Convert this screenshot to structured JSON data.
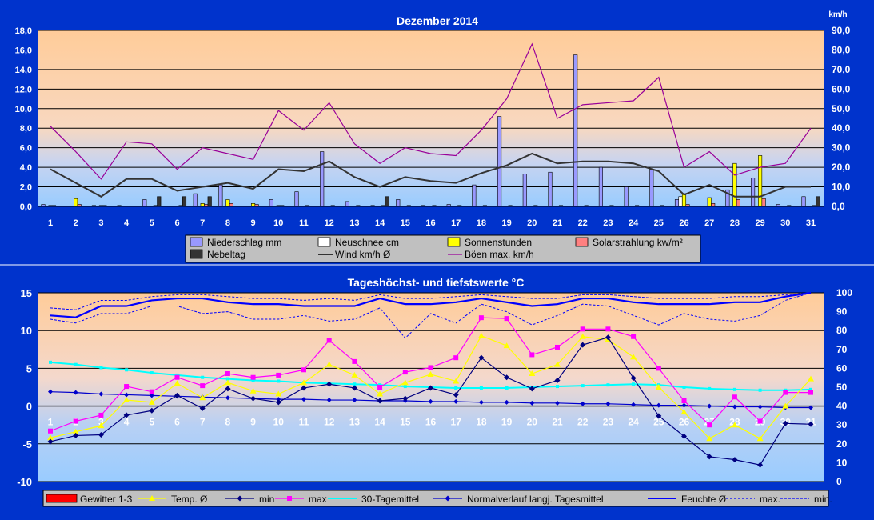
{
  "chart_data": [
    {
      "type": "bar",
      "title": "Dezember 2014",
      "y2_unit": "km/h",
      "x": [
        "1",
        "2",
        "3",
        "4",
        "5",
        "6",
        "7",
        "8",
        "9",
        "10",
        "11",
        "12",
        "13",
        "14",
        "15",
        "16",
        "17",
        "18",
        "19",
        "20",
        "21",
        "22",
        "23",
        "24",
        "25",
        "26",
        "27",
        "28",
        "29",
        "30",
        "31"
      ],
      "y_ticks": [
        "0,0",
        "2,0",
        "4,0",
        "6,0",
        "8,0",
        "10,0",
        "12,0",
        "14,0",
        "16,0",
        "18,0"
      ],
      "y2_ticks": [
        "0,0",
        "10,0",
        "20,0",
        "30,0",
        "40,0",
        "50,0",
        "60,0",
        "70,0",
        "80,0",
        "90,0"
      ],
      "ylim": [
        0,
        18
      ],
      "y2lim": [
        0,
        90
      ],
      "legend": {
        "position": "bottom",
        "entries": [
          {
            "label": "Niederschlag mm",
            "color": "#9999ff",
            "kind": "bar"
          },
          {
            "label": "Neuschnee cm",
            "color": "#ffffff",
            "kind": "bar"
          },
          {
            "label": "Sonnenstunden",
            "color": "#ffff00",
            "kind": "bar"
          },
          {
            "label": "Solarstrahlung kw/m²",
            "color": "#ff8080",
            "kind": "bar"
          },
          {
            "label": "Nebeltag",
            "color": "#333333",
            "kind": "bar"
          },
          {
            "label": "Wind km/h Ø",
            "color": "#333333",
            "kind": "line"
          },
          {
            "label": "Böen max. km/h",
            "color": "#990099",
            "kind": "line"
          }
        ]
      },
      "series": [
        {
          "key": "niederschlag",
          "values": [
            0.2,
            0,
            0.1,
            0.1,
            0.7,
            0,
            1.3,
            2.2,
            0,
            0.7,
            1.5,
            5.6,
            0.5,
            0.1,
            0.7,
            0.1,
            0.2,
            2.2,
            9.2,
            3.3,
            3.5,
            15.5,
            4.0,
            2.0,
            3.8,
            0.7,
            0,
            1.7,
            2.9,
            0.2,
            1.0
          ],
          "color": "#9999ff",
          "axis": "left"
        },
        {
          "key": "neuschnee",
          "values": [
            0,
            0,
            0,
            0,
            0,
            0,
            0,
            0,
            0,
            0,
            0,
            0,
            0,
            0,
            0,
            0,
            0,
            0,
            0,
            0,
            0,
            0,
            0,
            0,
            0,
            1.0,
            0,
            0,
            0,
            0,
            0
          ],
          "color": "#ffffff",
          "axis": "left"
        },
        {
          "key": "sonnenstunden",
          "values": [
            0.1,
            0.8,
            0.1,
            0,
            0,
            0,
            0.3,
            0.7,
            0.3,
            0.1,
            0,
            0,
            0,
            0,
            0,
            0,
            0,
            0,
            0,
            0,
            0,
            0,
            0,
            0,
            0,
            1.3,
            0.9,
            4.4,
            5.2,
            0,
            0
          ],
          "color": "#ffff00",
          "axis": "left"
        },
        {
          "key": "solarstrahlung",
          "values": [
            0.1,
            0.2,
            0.1,
            0,
            0.1,
            0.1,
            0.2,
            0.3,
            0.2,
            0.1,
            0.1,
            0.1,
            0.1,
            0.1,
            0.1,
            0.1,
            0.1,
            0.1,
            0.1,
            0.1,
            0.1,
            0.1,
            0.1,
            0.1,
            0.1,
            0.2,
            0.3,
            0.7,
            0.8,
            0.1,
            0.1
          ],
          "color": "#ff8080",
          "axis": "left"
        },
        {
          "key": "nebeltag",
          "values": [
            0,
            0,
            0,
            0,
            1,
            1,
            1,
            0,
            0,
            0,
            0,
            0,
            0,
            1,
            0,
            0,
            0,
            0,
            0,
            0,
            0,
            0,
            0,
            0,
            0,
            0,
            0,
            0,
            0,
            0,
            1
          ],
          "color": "#333333",
          "axis": "left"
        },
        {
          "key": "wind",
          "type": "line",
          "values": [
            19,
            12,
            5,
            14,
            14,
            8,
            10,
            12,
            9,
            19,
            18,
            23,
            15,
            10,
            15,
            13,
            12,
            17,
            21,
            27,
            22,
            23,
            23,
            22,
            18,
            6,
            11,
            5,
            5,
            10,
            10
          ],
          "color": "#333333",
          "axis": "right"
        },
        {
          "key": "boeen",
          "type": "line",
          "values": [
            41,
            28,
            14,
            33,
            32,
            19,
            30,
            27,
            24,
            49,
            39,
            53,
            32,
            22,
            30,
            27,
            26,
            39,
            55,
            83,
            45,
            52,
            53,
            54,
            66,
            20,
            28,
            16,
            20,
            22,
            40
          ],
          "color": "#990099",
          "axis": "right"
        }
      ]
    },
    {
      "type": "line",
      "title": "Tageshöchst- und tiefstswerte °C",
      "x": [
        "1",
        "2",
        "3",
        "4",
        "5",
        "6",
        "7",
        "8",
        "9",
        "10",
        "11",
        "12",
        "13",
        "14",
        "15",
        "16",
        "17",
        "18",
        "19",
        "20",
        "21",
        "22",
        "23",
        "24",
        "25",
        "26",
        "27",
        "28",
        "29",
        "30",
        "31"
      ],
      "y_ticks": [
        "-10",
        "-5",
        "0",
        "5",
        "10",
        "15"
      ],
      "y2_ticks": [
        "0",
        "10",
        "20",
        "30",
        "40",
        "50",
        "60",
        "70",
        "80",
        "90",
        "100"
      ],
      "ylim": [
        -10,
        15
      ],
      "y2lim": [
        0,
        100
      ],
      "legend": {
        "position": "bottom",
        "entries": [
          {
            "label": "Gewitter 1-3",
            "color": "#ff0000",
            "kind": "bar"
          },
          {
            "label": "Temp. Ø",
            "color": "#ffff00",
            "kind": "tri"
          },
          {
            "label": "min",
            "color": "#000080",
            "kind": "dia"
          },
          {
            "label": "max",
            "color": "#ff00ff",
            "kind": "sq"
          },
          {
            "label": "30-Tagemittel",
            "color": "#00ffff",
            "kind": "line"
          },
          {
            "label": "Normalverlauf langj. Tagesmittel",
            "color": "#0000cc",
            "kind": "dia"
          },
          {
            "label": "Feuchte Ø",
            "color": "#0000ff",
            "kind": "line"
          },
          {
            "label": "max.",
            "color": "#0000ff",
            "kind": "dash"
          },
          {
            "label": "min.",
            "color": "#0000ff",
            "kind": "dash"
          }
        ]
      },
      "series": [
        {
          "key": "tmax",
          "values": [
            -3.3,
            -2.0,
            -1.2,
            2.6,
            1.9,
            3.8,
            2.7,
            4.3,
            3.8,
            4.1,
            4.8,
            8.7,
            5.9,
            2.5,
            4.5,
            5.1,
            6.4,
            11.7,
            11.6,
            6.8,
            7.8,
            10.2,
            10.2,
            9.2,
            5.0,
            0.7,
            -2.5,
            1.2,
            -2.0,
            1.8,
            1.8
          ],
          "color": "#ff00ff",
          "axis": "left"
        },
        {
          "key": "temp",
          "values": [
            -4.2,
            -3.4,
            -2.6,
            0.8,
            0.5,
            3.0,
            1.1,
            3.1,
            2.0,
            1.6,
            3.1,
            5.5,
            4.1,
            1.6,
            3.1,
            4.2,
            3.3,
            9.3,
            8.0,
            4.3,
            5.5,
            9.2,
            8.8,
            6.5,
            2.5,
            -0.8,
            -4.3,
            -2.5,
            -4.3,
            0,
            3.6
          ],
          "color": "#ffff00",
          "axis": "left"
        },
        {
          "key": "tmin",
          "values": [
            -4.7,
            -3.9,
            -3.8,
            -1.2,
            -0.6,
            1.4,
            -0.3,
            2.3,
            1.0,
            0.5,
            2.4,
            2.9,
            2.4,
            0.7,
            1.0,
            2.4,
            1.5,
            6.4,
            3.8,
            2.3,
            3.4,
            8.1,
            9.1,
            3.7,
            -1.3,
            -4.0,
            -6.7,
            -7.1,
            -7.8,
            -2.3,
            -2.4
          ],
          "color": "#000080",
          "axis": "left"
        },
        {
          "key": "mittel30",
          "values": [
            5.8,
            5.5,
            5.1,
            4.8,
            4.4,
            4.1,
            3.8,
            3.6,
            3.4,
            3.3,
            3.1,
            3.0,
            2.9,
            2.8,
            2.6,
            2.5,
            2.4,
            2.4,
            2.4,
            2.5,
            2.6,
            2.7,
            2.8,
            2.9,
            2.8,
            2.5,
            2.3,
            2.2,
            2.1,
            2.1,
            2.2
          ],
          "color": "#00ffff",
          "axis": "left"
        },
        {
          "key": "normal",
          "values": [
            1.9,
            1.8,
            1.6,
            1.5,
            1.4,
            1.3,
            1.2,
            1.1,
            1.0,
            0.9,
            0.9,
            0.8,
            0.8,
            0.7,
            0.7,
            0.6,
            0.6,
            0.5,
            0.5,
            0.4,
            0.4,
            0.3,
            0.3,
            0.2,
            0.1,
            0.1,
            0.0,
            -0.1,
            -0.1,
            -0.2,
            -0.2
          ],
          "color": "#0000cc",
          "axis": "left"
        },
        {
          "key": "feuchte",
          "values": [
            88,
            87,
            93,
            93,
            96,
            97,
            97,
            95,
            94,
            94,
            93,
            93,
            93,
            97,
            94,
            94,
            95,
            97,
            95,
            93,
            94,
            97,
            97,
            95,
            94,
            94,
            94,
            95,
            95,
            98,
            100
          ],
          "color": "#0000ff",
          "axis": "right"
        },
        {
          "key": "feuchte_max",
          "values": [
            92,
            91,
            96,
            96,
            98,
            99,
            99,
            98,
            97,
            97,
            96,
            97,
            96,
            99,
            97,
            97,
            98,
            99,
            98,
            97,
            97,
            99,
            99,
            98,
            97,
            97,
            97,
            98,
            98,
            99,
            100
          ],
          "color": "#0000ff",
          "axis": "right"
        },
        {
          "key": "feuchte_min",
          "values": [
            86,
            84,
            89,
            89,
            93,
            93,
            89,
            90,
            86,
            86,
            88,
            85,
            86,
            92,
            76,
            89,
            84,
            94,
            90,
            83,
            88,
            94,
            93,
            88,
            83,
            89,
            86,
            85,
            88,
            96,
            100
          ],
          "color": "#0000ff",
          "axis": "right"
        }
      ]
    }
  ]
}
